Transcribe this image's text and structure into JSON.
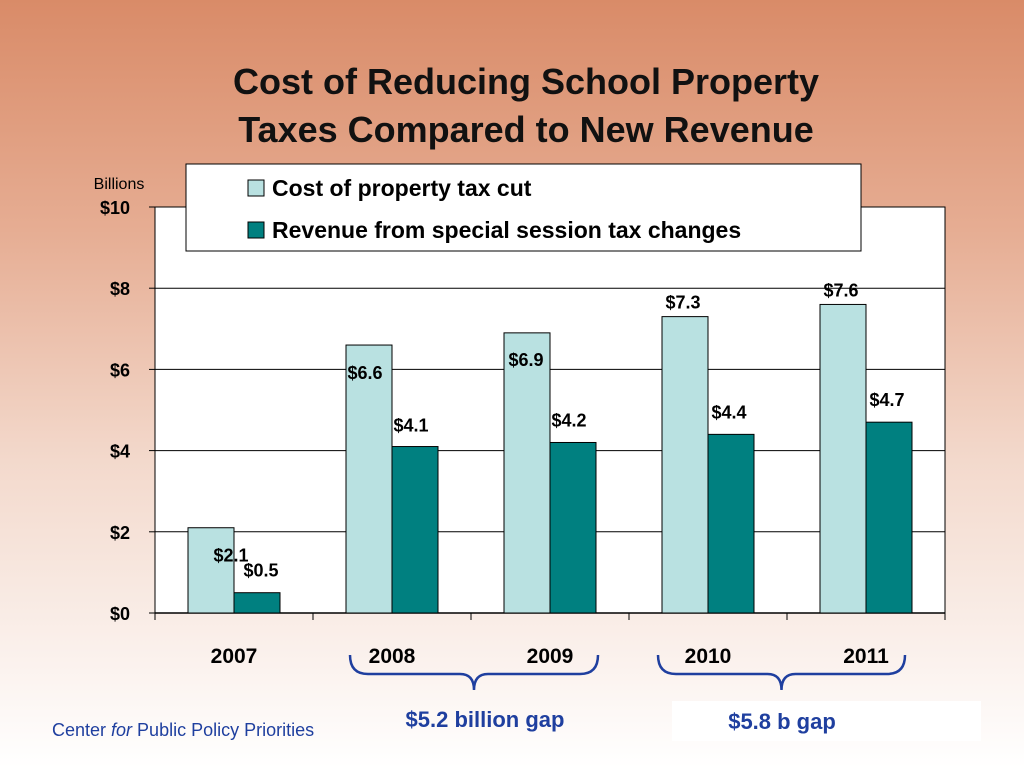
{
  "title_line1": "Cost of Reducing School Property",
  "title_line2": "Taxes Compared to New Revenue",
  "footer": {
    "pre": "Center ",
    "italic": "for",
    "post": " Public Policy Priorities"
  },
  "gaps": [
    {
      "label": "$5.2 billion gap"
    },
    {
      "label": "$5.8 b gap"
    }
  ],
  "colors": {
    "series1": "#b9e1e1",
    "series2": "#008080",
    "brace": "#1f3f9f"
  },
  "chart_data": {
    "type": "bar",
    "title": "Cost of Reducing School Property Taxes Compared to New Revenue",
    "unit_label": "Billions",
    "categories": [
      "2007",
      "2008",
      "2009",
      "2010",
      "2011"
    ],
    "series": [
      {
        "name": "Cost of property tax cut",
        "values": [
          2.1,
          6.6,
          6.9,
          7.3,
          7.6
        ],
        "labels": [
          "$2.1",
          "$6.6",
          "$6.9",
          "$7.3",
          "$7.6"
        ]
      },
      {
        "name": "Revenue from special session tax changes",
        "values": [
          0.5,
          4.1,
          4.2,
          4.4,
          4.7
        ],
        "labels": [
          "$0.5",
          "$4.1",
          "$4.2",
          "$4.4",
          "$4.7"
        ]
      }
    ],
    "ylim": [
      0,
      10
    ],
    "yticks": [
      0,
      2,
      4,
      6,
      8,
      10
    ],
    "ytick_labels": [
      "$0",
      "$2",
      "$4",
      "$6",
      "$8",
      "$10"
    ],
    "grid": true,
    "legend": "top"
  }
}
